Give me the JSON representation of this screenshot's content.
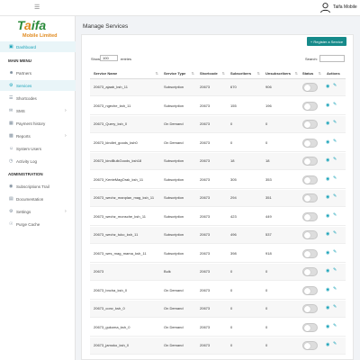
{
  "topbar": {
    "user_name": "Taifa Mobile"
  },
  "brand": {
    "logo_text_a": "T",
    "logo_text_b": "a",
    "logo_text_c": "ifa",
    "logo_sub": "Mobile Limited"
  },
  "sidebar": {
    "dashboard": "Dashboard",
    "main_menu": "MAIN MENU",
    "items": [
      {
        "label": "Partners",
        "icon": "users-icon"
      },
      {
        "label": "Services",
        "icon": "gear-icon"
      },
      {
        "label": "Shortcodes",
        "icon": "list-icon"
      },
      {
        "label": "SMS",
        "icon": "envelope-icon"
      },
      {
        "label": "Payment history",
        "icon": "money-icon"
      },
      {
        "label": "Reports",
        "icon": "chart-icon"
      },
      {
        "label": "System Users",
        "icon": "user-icon"
      },
      {
        "label": "Activity Log",
        "icon": "clock-icon"
      }
    ],
    "administration": "ADMINISTRATION",
    "admin_items": [
      {
        "label": "Subscriptions Trail",
        "icon": "trail-icon"
      },
      {
        "label": "Documentation",
        "icon": "book-icon"
      },
      {
        "label": "Settings",
        "icon": "cog-icon"
      },
      {
        "label": "Purge Cache",
        "icon": "trash-icon"
      }
    ]
  },
  "main": {
    "title": "Manage Services",
    "register_button": "+ Register a Service",
    "show_label": "Show",
    "show_value": "100",
    "entries_label": "entries",
    "search_label": "Search:"
  },
  "table": {
    "headers": [
      "Service Name",
      "Service Type",
      "Shortcode",
      "Subscribers",
      "Unsubscribers",
      "Status",
      "Actions"
    ],
    "rows": [
      [
        "20673_ajaab_ksh_11",
        "Subscription",
        "20673",
        "670",
        "906"
      ],
      [
        "20673_ngeche_ksh_11",
        "Subscription",
        "20673",
        "155",
        "196"
      ],
      [
        "20673_Query_ksh_0",
        "On Demand",
        "20673",
        "0",
        "0"
      ],
      [
        "20673_kindlet_goods_ksh0",
        "On Demand",
        "20673",
        "0",
        "0"
      ],
      [
        "20673_kindBulkGoods_ksh18",
        "Subscription",
        "20673",
        "18",
        "18"
      ],
      [
        "20673_KenteMagOrak_ksh_11",
        "Subscription",
        "20673",
        "305",
        "353"
      ],
      [
        "20673_wechz_manplan_mag_ksh_11",
        "Subscription",
        "20673",
        "294",
        "351"
      ],
      [
        "20673_wechz_monsche_ksh_11",
        "Subscription",
        "20673",
        "423",
        "449"
      ],
      [
        "20673_wechz_tuko_ksh_11",
        "Subscription",
        "20673",
        "496",
        "537"
      ],
      [
        "20673_wes_mag_mama_ksh_11",
        "Subscription",
        "20673",
        "398",
        "918"
      ],
      [
        "20673",
        "Bulk",
        "20673",
        "0",
        "0"
      ],
      [
        "20673_bncha_ksh_0",
        "On Demand",
        "20673",
        "0",
        "0"
      ],
      [
        "20673_conv_ksh_0",
        "On Demand",
        "20673",
        "0",
        "0"
      ],
      [
        "20673_gukoma_ksh_0",
        "On Demand",
        "20673",
        "0",
        "0"
      ],
      [
        "20673_jamoko_ksh_0",
        "On Demand",
        "20673",
        "0",
        "0"
      ]
    ]
  }
}
